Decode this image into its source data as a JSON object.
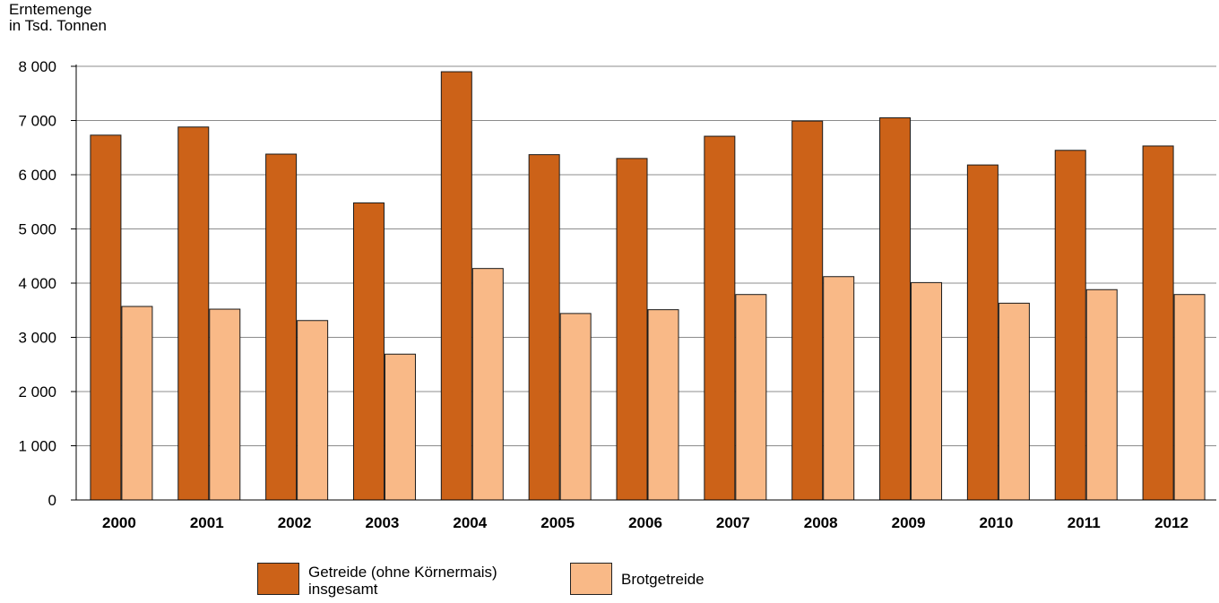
{
  "chart_data": {
    "type": "bar",
    "ylabel_lines": [
      "Erntemenge",
      "in Tsd. Tonnen"
    ],
    "categories": [
      "2000",
      "2001",
      "2002",
      "2003",
      "2004",
      "2005",
      "2006",
      "2007",
      "2008",
      "2009",
      "2010",
      "2011",
      "2012"
    ],
    "ylim": [
      0,
      8000
    ],
    "yticks": [
      0,
      1000,
      2000,
      3000,
      4000,
      5000,
      6000,
      7000,
      8000
    ],
    "ytick_labels": [
      "0",
      "1 000",
      "2 000",
      "3 000",
      "4 000",
      "5 000",
      "6 000",
      "7 000",
      "8 000"
    ],
    "grid": true,
    "legend_position": "bottom-center",
    "series": [
      {
        "name_lines": [
          "Getreide (ohne Körnermais)",
          "insgesamt"
        ],
        "color": "#cc6218",
        "values": [
          6730,
          6880,
          6380,
          5480,
          7900,
          6370,
          6300,
          6710,
          6990,
          7050,
          6180,
          6450,
          6530
        ]
      },
      {
        "name_lines": [
          "Brotgetreide"
        ],
        "color": "#f9b987",
        "values": [
          3570,
          3520,
          3310,
          2690,
          4270,
          3440,
          3510,
          3790,
          4120,
          4010,
          3630,
          3880,
          3790
        ]
      }
    ]
  }
}
